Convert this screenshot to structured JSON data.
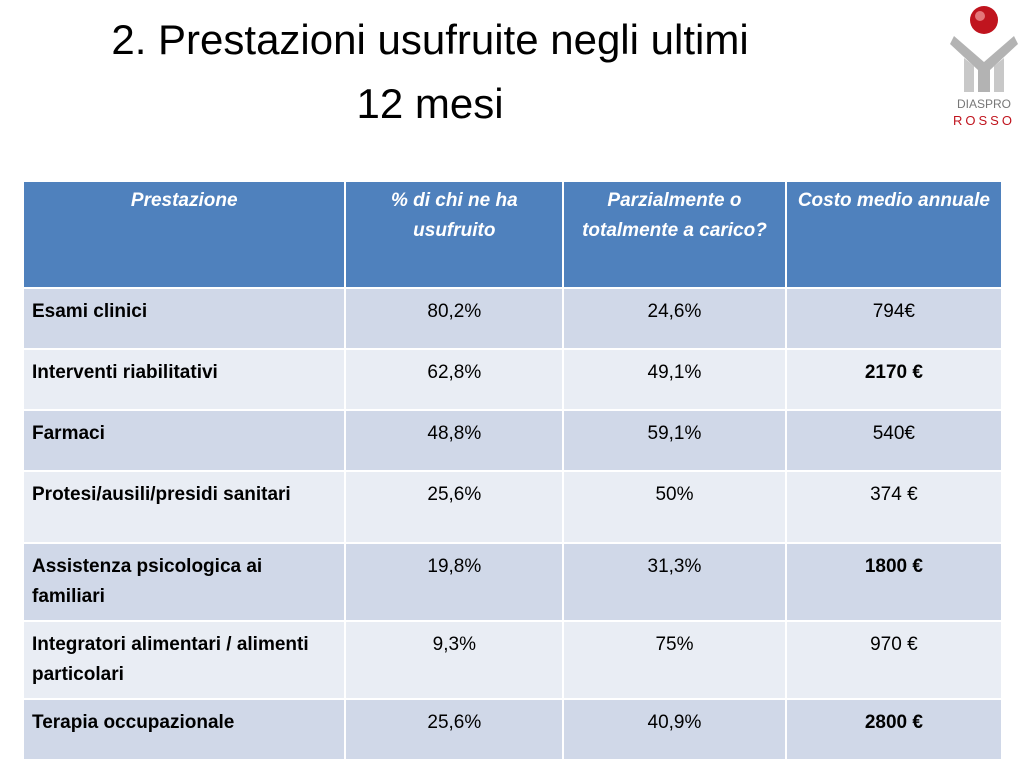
{
  "header": {
    "title_lines": [
      "2. Prestazioni usufruite negli ultimi",
      "12 mesi"
    ],
    "logo": {
      "line1": "DIASPRO",
      "line2": "ROSSO"
    }
  },
  "table": {
    "columns": [
      "Prestazione",
      "% di chi ne ha usufruito",
      "Parzialmente o totalmente a carico?",
      "Costo medio annuale"
    ],
    "rows": [
      [
        "Esami clinici",
        "80,2%",
        "24,6%",
        {
          "text": "794€",
          "bold": false
        }
      ],
      [
        "Interventi riabilitativi",
        "62,8%",
        "49,1%",
        {
          "text": "2170 €",
          "bold": true
        }
      ],
      [
        "Farmaci",
        "48,8%",
        "59,1%",
        {
          "text": "540€",
          "bold": false
        }
      ],
      [
        "Protesi/ausili/presidi sanitari",
        "25,6%",
        "50%",
        {
          "text": "374 €",
          "bold": false
        }
      ],
      [
        "Assistenza psicologica ai familiari",
        "19,8%",
        "31,3%",
        {
          "text": "1800 €",
          "bold": true
        }
      ],
      [
        "Integratori alimentari / alimenti particolari",
        "9,3%",
        "75%",
        {
          "text": "970 €",
          "bold": false
        }
      ],
      [
        "Terapia occupazionale",
        "25,6%",
        "40,9%",
        {
          "text": "2800 €",
          "bold": true
        }
      ]
    ]
  }
}
